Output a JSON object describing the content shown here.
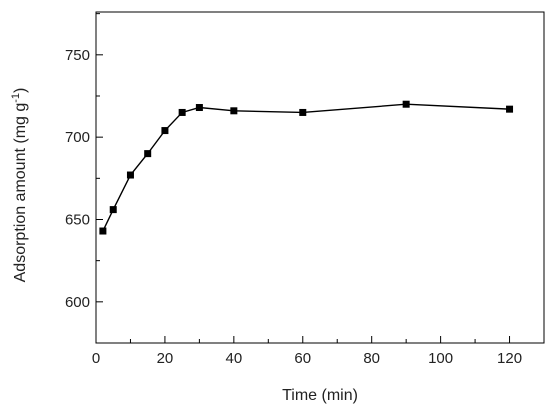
{
  "chart_data": {
    "type": "line",
    "xlabel": "Time (min)",
    "ylabel_main": "Adsorption amount (mg g",
    "ylabel_sup": "-1",
    "ylabel_end": ")",
    "xlim": [
      0,
      130
    ],
    "ylim": [
      575,
      776
    ],
    "xticks": [
      0,
      20,
      40,
      60,
      80,
      100,
      120
    ],
    "yticks": [
      600,
      650,
      700,
      750
    ],
    "xtick_labels": [
      "0",
      "20",
      "40",
      "60",
      "80",
      "100",
      "120"
    ],
    "ytick_labels": [
      "600",
      "650",
      "700",
      "750"
    ],
    "grid": false,
    "series": [
      {
        "marker": "square",
        "color": "#000000",
        "x": [
          2,
          5,
          10,
          15,
          20,
          25,
          30,
          40,
          60,
          90,
          120
        ],
        "y": [
          643,
          656,
          677,
          690,
          704,
          715,
          718,
          716,
          715,
          720,
          717
        ]
      }
    ]
  }
}
